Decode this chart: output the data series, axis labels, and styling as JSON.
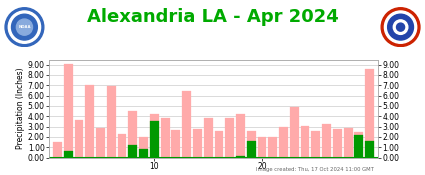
{
  "title": "Alexandria LA - Apr 2024",
  "title_color": "#00aa00",
  "ylabel": "Precipitation (Inches)",
  "caption": "Image created: Thu, 17 Oct 2024 11:00 GMT",
  "days": [
    1,
    2,
    3,
    4,
    5,
    6,
    7,
    8,
    9,
    10,
    11,
    12,
    13,
    14,
    15,
    16,
    17,
    18,
    19,
    20,
    21,
    22,
    23,
    24,
    25,
    26,
    27,
    28,
    29,
    30
  ],
  "pink_bars": [
    1.5,
    9.1,
    3.6,
    7.0,
    2.9,
    6.9,
    2.3,
    4.5,
    2.0,
    4.2,
    3.8,
    2.7,
    6.4,
    2.8,
    3.8,
    2.6,
    3.8,
    4.2,
    2.6,
    2.0,
    2.0,
    3.0,
    4.9,
    3.1,
    2.6,
    3.2,
    2.8,
    2.9,
    2.5,
    8.6
  ],
  "green_bars": [
    0.0,
    0.6,
    0.0,
    0.0,
    0.0,
    0.0,
    0.0,
    1.2,
    0.85,
    3.5,
    0.0,
    0.0,
    0.0,
    0.0,
    0.0,
    0.0,
    0.0,
    0.1,
    1.6,
    0.0,
    0.0,
    0.0,
    0.0,
    0.0,
    0.0,
    0.0,
    0.0,
    0.0,
    2.2,
    1.6
  ],
  "pink_color": "#ffaaaa",
  "green_color": "#009900",
  "ylim": [
    0.0,
    9.5
  ],
  "yticks": [
    0.0,
    1.0,
    2.0,
    3.0,
    4.0,
    5.0,
    6.0,
    7.0,
    8.0,
    9.0
  ],
  "ytick_labels": [
    "0.00",
    "1.00",
    "2.00",
    "3.00",
    "4.00",
    "5.00",
    "6.00",
    "7.00",
    "8.00",
    "9.00"
  ],
  "xtick_positions": [
    10,
    20
  ],
  "bg_color": "#ffffff",
  "plot_bg_color": "#ffffff",
  "grid_color": "#cccccc",
  "title_fontsize": 13,
  "axis_fontsize": 5.5,
  "caption_fontsize": 3.8
}
